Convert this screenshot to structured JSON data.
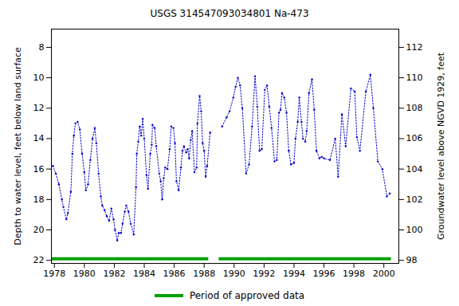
{
  "chart_data": {
    "type": "line",
    "title": "USGS 314547093034801 Na-473",
    "y_label": "Depth to water level, feet below land surface",
    "y2_label": "Groundwater level above NGVD 1929, feet",
    "xlim": [
      1977.8,
      2001.0
    ],
    "xticks": [
      1978,
      1980,
      1982,
      1984,
      1986,
      1988,
      1990,
      1992,
      1994,
      1996,
      1998,
      2000
    ],
    "ylim": [
      6.8,
      22.2
    ],
    "yticks": [
      8,
      10,
      12,
      14,
      16,
      18,
      20,
      22
    ],
    "y2lim": [
      113.2,
      97.8
    ],
    "y2ticks": [
      98,
      100,
      102,
      104,
      106,
      108,
      110,
      112
    ],
    "grid": false,
    "color": "#0000cc",
    "marker": "dot",
    "line_style": "dotted",
    "x": [
      1977.9,
      1978.1,
      1978.3,
      1978.5,
      1978.6,
      1978.8,
      1978.9,
      1979.1,
      1979.2,
      1979.3,
      1979.4,
      1979.55,
      1979.7,
      1979.85,
      1980.0,
      1980.1,
      1980.25,
      1980.4,
      1980.55,
      1980.7,
      1980.8,
      1980.95,
      1981.1,
      1981.2,
      1981.35,
      1981.5,
      1981.65,
      1981.8,
      1981.95,
      1982.05,
      1982.2,
      1982.3,
      1982.45,
      1982.55,
      1982.7,
      1982.8,
      1982.95,
      1983.1,
      1983.3,
      1983.45,
      1983.5,
      1983.6,
      1983.7,
      1983.8,
      1983.9,
      1984.0,
      1984.15,
      1984.25,
      1984.4,
      1984.5,
      1984.55,
      1984.7,
      1984.8,
      1985.0,
      1985.1,
      1985.2,
      1985.3,
      1985.4,
      1985.55,
      1985.7,
      1985.8,
      1985.95,
      1986.05,
      1986.15,
      1986.3,
      1986.45,
      1986.55,
      1986.65,
      1986.8,
      1986.9,
      1987.0,
      1987.1,
      1987.2,
      1987.35,
      1987.5,
      1987.55,
      1987.7,
      1987.8,
      1987.9,
      1988.0,
      1988.1,
      1988.2,
      1988.4,
      1988.8,
      1989.2,
      1989.5,
      1989.7,
      1989.95,
      1990.1,
      1990.25,
      1990.4,
      1990.55,
      1990.8,
      1991.0,
      1991.2,
      1991.4,
      1991.55,
      1991.7,
      1991.85,
      1992.05,
      1992.2,
      1992.35,
      1992.5,
      1992.7,
      1992.85,
      1993.0,
      1993.1,
      1993.2,
      1993.35,
      1993.5,
      1993.65,
      1993.8,
      1994.0,
      1994.1,
      1994.25,
      1994.35,
      1994.5,
      1994.6,
      1994.75,
      1994.85,
      1995.0,
      1995.2,
      1995.35,
      1995.5,
      1995.7,
      1995.85,
      1996.0,
      1996.4,
      1996.75,
      1996.95,
      1997.2,
      1997.45,
      1997.8,
      1998.05,
      1998.2,
      1998.4,
      1998.8,
      1999.1,
      1999.3,
      1999.6,
      1999.9,
      2000.2,
      2000.4
    ],
    "values": [
      15.8,
      16.3,
      17.0,
      18.0,
      18.5,
      19.3,
      18.9,
      17.5,
      15.0,
      13.8,
      13.0,
      12.9,
      13.4,
      15.0,
      16.2,
      17.4,
      17.0,
      15.4,
      14.0,
      13.3,
      14.3,
      16.3,
      17.8,
      18.4,
      18.7,
      19.1,
      19.4,
      18.6,
      19.3,
      20.0,
      20.7,
      20.2,
      20.2,
      19.6,
      18.8,
      18.4,
      18.8,
      19.6,
      20.3,
      17.2,
      15.0,
      14.2,
      13.2,
      13.8,
      12.7,
      14.0,
      16.4,
      17.3,
      15.0,
      14.4,
      13.1,
      13.3,
      14.5,
      16.3,
      16.8,
      18.0,
      16.6,
      15.9,
      16.0,
      14.7,
      13.2,
      13.3,
      14.3,
      16.8,
      17.4,
      15.9,
      14.8,
      14.5,
      14.9,
      14.7,
      15.3,
      14.1,
      13.5,
      16.2,
      15.9,
      13.0,
      11.2,
      12.2,
      14.3,
      14.8,
      16.5,
      15.8,
      13.6,
      null,
      13.2,
      12.6,
      12.2,
      11.3,
      10.6,
      10.0,
      10.5,
      12.0,
      16.3,
      15.7,
      13.2,
      9.9,
      11.9,
      14.8,
      14.7,
      10.8,
      10.5,
      11.9,
      13.3,
      15.5,
      15.4,
      12.3,
      12.1,
      11.0,
      11.3,
      12.3,
      14.8,
      15.7,
      15.6,
      14.0,
      12.9,
      11.3,
      12.9,
      14.0,
      14.2,
      13.5,
      11.0,
      10.1,
      12.1,
      14.8,
      15.3,
      15.2,
      15.3,
      15.4,
      14.0,
      16.5,
      12.4,
      14.5,
      10.7,
      10.9,
      13.9,
      14.8,
      10.9,
      9.8,
      12.0,
      15.5,
      16.0,
      17.8,
      17.6
    ],
    "approved": {
      "name": "Period of approved data",
      "color": "#00a000",
      "periods": [
        [
          1977.85,
          1988.3
        ],
        [
          1989.0,
          2000.5
        ]
      ],
      "y": 21.9
    }
  }
}
